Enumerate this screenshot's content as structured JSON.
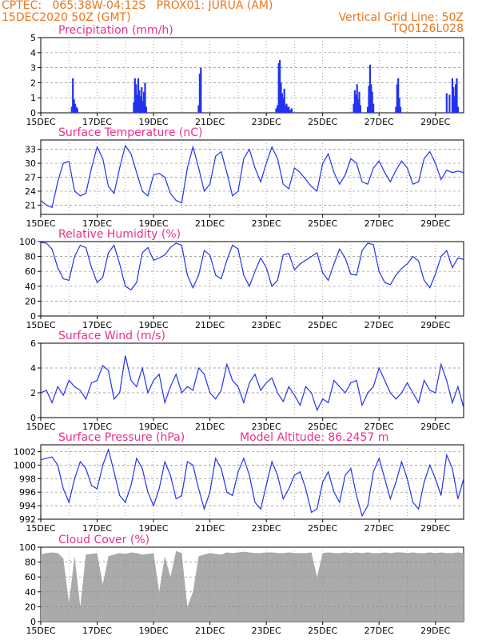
{
  "header": {
    "line1": "CPTEC:   065:38W-04:12S   PROX01: JURUA (AM)",
    "line2_left": "15DEC2020 50Z (GMT)",
    "line2_right": "Vertical Grid Line: 50Z",
    "line3_right": "TQ0126L028"
  },
  "colors": {
    "header": "#e8761e",
    "title": "#e8308c",
    "series": "#2233ee",
    "cloud": "#aaaaaa",
    "grid": "#888888"
  },
  "chart_data": [
    {
      "type": "bar",
      "title": "Precipitation (mm/h)",
      "xticks": [
        "15DEC",
        "17DEC",
        "19DEC",
        "21DEC",
        "23DEC",
        "25DEC",
        "27DEC",
        "29DEC"
      ],
      "yticks": [
        0,
        1,
        2,
        3,
        4,
        5
      ],
      "ylim": [
        0,
        5
      ],
      "x_range_days": [
        0,
        15
      ],
      "x": [
        1.1,
        1.14,
        1.18,
        1.22,
        1.26,
        1.3,
        3.3,
        3.34,
        3.38,
        3.42,
        3.46,
        3.5,
        3.54,
        3.58,
        3.62,
        3.66,
        3.7,
        3.74,
        5.6,
        5.64,
        5.68,
        8.35,
        8.4,
        8.44,
        8.48,
        8.52,
        8.56,
        8.6,
        8.64,
        8.68,
        8.72,
        8.76,
        8.8,
        8.85,
        8.9,
        11.1,
        11.14,
        11.18,
        11.22,
        11.26,
        11.3,
        11.34,
        11.6,
        11.64,
        11.68,
        11.72,
        11.76,
        11.8,
        12.6,
        12.64,
        12.68,
        12.72,
        12.76,
        14.4,
        14.5,
        14.6,
        14.64,
        14.68,
        14.72,
        14.76,
        14.8
      ],
      "values": [
        0.4,
        2.3,
        0.9,
        0.6,
        0.4,
        0.3,
        0.7,
        2.3,
        1.9,
        1.2,
        2.3,
        1.5,
        1.1,
        1.7,
        0.8,
        1.4,
        2.0,
        0.4,
        0.5,
        2.6,
        3.0,
        0.3,
        0.5,
        3.3,
        3.5,
        2.0,
        1.3,
        1.0,
        1.6,
        0.5,
        0.6,
        0.4,
        0.4,
        0.2,
        0.3,
        0.6,
        1.5,
        1.2,
        1.9,
        0.9,
        1.4,
        0.5,
        0.4,
        1.8,
        3.2,
        1.9,
        1.4,
        0.6,
        0.4,
        1.9,
        2.3,
        1.0,
        0.4,
        1.3,
        1.2,
        2.3,
        1.7,
        1.1,
        1.9,
        2.3,
        0.4
      ]
    },
    {
      "type": "line",
      "title": "Surface Temperature (nC)",
      "xticks": [
        "15DEC",
        "17DEC",
        "19DEC",
        "21DEC",
        "23DEC",
        "25DEC",
        "27DEC",
        "29DEC"
      ],
      "yticks": [
        21,
        24,
        27,
        30,
        33
      ],
      "ylim": [
        19,
        35
      ],
      "x_range_days": [
        0,
        15
      ],
      "x": [
        0.0,
        0.2,
        0.4,
        0.6,
        0.8,
        1.0,
        1.2,
        1.4,
        1.6,
        1.8,
        2.0,
        2.2,
        2.4,
        2.6,
        2.8,
        3.0,
        3.2,
        3.4,
        3.6,
        3.8,
        4.0,
        4.2,
        4.4,
        4.6,
        4.8,
        5.0,
        5.2,
        5.4,
        5.6,
        5.8,
        6.0,
        6.2,
        6.4,
        6.6,
        6.8,
        7.0,
        7.2,
        7.4,
        7.6,
        7.8,
        8.0,
        8.2,
        8.4,
        8.6,
        8.8,
        9.0,
        9.2,
        9.4,
        9.6,
        9.8,
        10.0,
        10.2,
        10.4,
        10.6,
        10.8,
        11.0,
        11.2,
        11.4,
        11.6,
        11.8,
        12.0,
        12.2,
        12.4,
        12.6,
        12.8,
        13.0,
        13.2,
        13.4,
        13.6,
        13.8,
        14.0,
        14.2,
        14.4,
        14.6,
        14.8,
        15.0
      ],
      "values": [
        22.0,
        21.0,
        20.5,
        26.0,
        30.0,
        30.4,
        24.0,
        23.0,
        23.5,
        29.0,
        33.5,
        31.0,
        25.0,
        23.5,
        29.0,
        33.8,
        32.0,
        28.0,
        24.0,
        23.0,
        27.5,
        27.8,
        27.0,
        23.5,
        22.0,
        21.5,
        29.0,
        33.5,
        29.0,
        24.0,
        25.5,
        31.5,
        32.5,
        28.0,
        23.0,
        24.0,
        31.0,
        33.0,
        29.0,
        26.0,
        30.0,
        33.5,
        31.0,
        25.5,
        24.5,
        29.0,
        28.0,
        26.5,
        25.0,
        24.0,
        30.0,
        32.0,
        28.0,
        25.5,
        27.5,
        31.0,
        30.0,
        26.0,
        25.5,
        29.0,
        30.5,
        28.0,
        26.0,
        28.5,
        30.5,
        29.0,
        25.5,
        26.0,
        31.0,
        32.5,
        30.0,
        26.5,
        28.5,
        28.0,
        28.3,
        28.0
      ]
    },
    {
      "type": "line",
      "title": "Relative Humidity (%)",
      "xticks": [
        "15DEC",
        "17DEC",
        "19DEC",
        "21DEC",
        "23DEC",
        "25DEC",
        "27DEC",
        "29DEC"
      ],
      "yticks": [
        0,
        20,
        40,
        60,
        80,
        100
      ],
      "ylim": [
        0,
        100
      ],
      "x_range_days": [
        0,
        15
      ],
      "x": [
        0.0,
        0.2,
        0.4,
        0.6,
        0.8,
        1.0,
        1.2,
        1.4,
        1.6,
        1.8,
        2.0,
        2.2,
        2.4,
        2.6,
        2.8,
        3.0,
        3.2,
        3.4,
        3.6,
        3.8,
        4.0,
        4.2,
        4.4,
        4.6,
        4.8,
        5.0,
        5.2,
        5.4,
        5.6,
        5.8,
        6.0,
        6.2,
        6.4,
        6.6,
        6.8,
        7.0,
        7.2,
        7.4,
        7.6,
        7.8,
        8.0,
        8.2,
        8.4,
        8.6,
        8.8,
        9.0,
        9.2,
        9.4,
        9.6,
        9.8,
        10.0,
        10.2,
        10.4,
        10.6,
        10.8,
        11.0,
        11.2,
        11.4,
        11.6,
        11.8,
        12.0,
        12.2,
        12.4,
        12.6,
        12.8,
        13.0,
        13.2,
        13.4,
        13.6,
        13.8,
        14.0,
        14.2,
        14.4,
        14.6,
        14.8,
        15.0
      ],
      "values": [
        99,
        98,
        90,
        65,
        50,
        48,
        80,
        95,
        92,
        65,
        45,
        52,
        85,
        95,
        70,
        40,
        35,
        45,
        85,
        92,
        75,
        78,
        82,
        92,
        98,
        95,
        55,
        38,
        55,
        88,
        82,
        55,
        50,
        75,
        95,
        90,
        55,
        40,
        60,
        78,
        65,
        40,
        48,
        82,
        84,
        62,
        70,
        75,
        80,
        85,
        58,
        48,
        70,
        90,
        78,
        56,
        55,
        88,
        98,
        96,
        60,
        45,
        42,
        55,
        64,
        70,
        80,
        74,
        48,
        38,
        56,
        80,
        88,
        65,
        78,
        76
      ]
    },
    {
      "type": "line",
      "title": "Surface Wind (m/s)",
      "xticks": [
        "15DEC",
        "17DEC",
        "19DEC",
        "21DEC",
        "23DEC",
        "25DEC",
        "27DEC",
        "29DEC"
      ],
      "yticks": [
        0,
        2,
        4,
        6
      ],
      "ylim": [
        0,
        6
      ],
      "x_range_days": [
        0,
        15
      ],
      "x": [
        0.0,
        0.2,
        0.4,
        0.6,
        0.8,
        1.0,
        1.2,
        1.4,
        1.6,
        1.8,
        2.0,
        2.2,
        2.4,
        2.6,
        2.8,
        3.0,
        3.2,
        3.4,
        3.6,
        3.8,
        4.0,
        4.2,
        4.4,
        4.6,
        4.8,
        5.0,
        5.2,
        5.4,
        5.6,
        5.8,
        6.0,
        6.2,
        6.4,
        6.6,
        6.8,
        7.0,
        7.2,
        7.4,
        7.6,
        7.8,
        8.0,
        8.2,
        8.4,
        8.6,
        8.8,
        9.0,
        9.2,
        9.4,
        9.6,
        9.8,
        10.0,
        10.2,
        10.4,
        10.6,
        10.8,
        11.0,
        11.2,
        11.4,
        11.6,
        11.8,
        12.0,
        12.2,
        12.4,
        12.6,
        12.8,
        13.0,
        13.2,
        13.4,
        13.6,
        13.8,
        14.0,
        14.2,
        14.4,
        14.6,
        14.8,
        15.0
      ],
      "values": [
        2.0,
        2.2,
        1.2,
        2.5,
        1.8,
        3.0,
        2.5,
        2.2,
        1.5,
        2.8,
        3.0,
        4.2,
        3.8,
        1.5,
        2.0,
        5.0,
        3.0,
        2.5,
        4.0,
        2.0,
        3.0,
        3.5,
        1.2,
        2.5,
        3.5,
        2.0,
        2.5,
        2.2,
        4.0,
        3.5,
        2.0,
        1.5,
        2.2,
        4.3,
        3.0,
        2.5,
        1.2,
        2.8,
        3.5,
        2.2,
        2.8,
        3.2,
        2.0,
        1.3,
        2.5,
        1.8,
        1.0,
        2.5,
        2.0,
        0.6,
        1.5,
        1.2,
        3.0,
        2.5,
        2.0,
        2.8,
        3.0,
        1.0,
        2.0,
        2.5,
        4.0,
        3.0,
        2.0,
        1.5,
        2.0,
        2.8,
        2.0,
        1.2,
        3.0,
        2.2,
        2.0,
        4.3,
        3.0,
        1.2,
        2.5,
        0.8
      ]
    },
    {
      "type": "line",
      "title": "Surface Pressure (hPa)",
      "annotation": "Model Altitude: 86.2457  m",
      "xticks": [
        "15DEC",
        "17DEC",
        "19DEC",
        "21DEC",
        "23DEC",
        "25DEC",
        "27DEC",
        "29DEC"
      ],
      "yticks": [
        992,
        994,
        996,
        998,
        1000,
        1002
      ],
      "ylim": [
        992,
        1003
      ],
      "x_range_days": [
        0,
        15
      ],
      "x": [
        0.0,
        0.2,
        0.4,
        0.6,
        0.8,
        1.0,
        1.2,
        1.4,
        1.6,
        1.8,
        2.0,
        2.2,
        2.4,
        2.6,
        2.8,
        3.0,
        3.2,
        3.4,
        3.6,
        3.8,
        4.0,
        4.2,
        4.4,
        4.6,
        4.8,
        5.0,
        5.2,
        5.4,
        5.6,
        5.8,
        6.0,
        6.2,
        6.4,
        6.6,
        6.8,
        7.0,
        7.2,
        7.4,
        7.6,
        7.8,
        8.0,
        8.2,
        8.4,
        8.6,
        8.8,
        9.0,
        9.2,
        9.4,
        9.6,
        9.8,
        10.0,
        10.2,
        10.4,
        10.6,
        10.8,
        11.0,
        11.2,
        11.4,
        11.6,
        11.8,
        12.0,
        12.2,
        12.4,
        12.6,
        12.8,
        13.0,
        13.2,
        13.4,
        13.6,
        13.8,
        14.0,
        14.2,
        14.4,
        14.6,
        14.8,
        15.0
      ],
      "values": [
        1000.8,
        1001.0,
        1001.2,
        1000.0,
        996.5,
        994.5,
        998.0,
        1000.5,
        999.5,
        997.0,
        996.5,
        1000.0,
        1002.3,
        999.0,
        995.5,
        994.5,
        997.0,
        1001.0,
        999.5,
        996.0,
        994.0,
        996.5,
        1000.5,
        998.5,
        995.0,
        995.5,
        1000.5,
        1000.0,
        996.5,
        993.5,
        996.0,
        1001.0,
        999.5,
        996.0,
        995.5,
        999.0,
        1001.0,
        998.5,
        994.5,
        993.5,
        997.0,
        1000.5,
        998.5,
        995.0,
        996.5,
        998.5,
        999.0,
        996.5,
        993.0,
        993.5,
        997.5,
        999.0,
        996.0,
        994.5,
        998.5,
        999.5,
        995.5,
        992.5,
        994.0,
        999.0,
        1001.0,
        998.0,
        995.0,
        997.5,
        1000.5,
        998.0,
        994.5,
        993.5,
        997.5,
        1000.0,
        998.0,
        995.5,
        1001.5,
        999.5,
        995.0,
        998.0
      ]
    },
    {
      "type": "area",
      "title": "Cloud Cover (%)",
      "xticks": [
        "15DEC",
        "17DEC",
        "19DEC",
        "21DEC",
        "23DEC",
        "25DEC",
        "27DEC",
        "29DEC"
      ],
      "yticks": [
        0,
        20,
        40,
        60,
        80,
        100
      ],
      "ylim": [
        0,
        100
      ],
      "x_range_days": [
        0,
        15
      ],
      "x": [
        0.0,
        0.2,
        0.4,
        0.6,
        0.8,
        1.0,
        1.2,
        1.4,
        1.6,
        1.8,
        2.0,
        2.2,
        2.4,
        2.6,
        2.8,
        3.0,
        3.2,
        3.4,
        3.6,
        3.8,
        4.0,
        4.2,
        4.4,
        4.6,
        4.8,
        5.0,
        5.2,
        5.4,
        5.6,
        5.8,
        6.0,
        6.2,
        6.4,
        6.6,
        6.8,
        7.0,
        7.2,
        7.4,
        7.6,
        7.8,
        8.0,
        8.2,
        8.4,
        8.6,
        8.8,
        9.0,
        9.2,
        9.4,
        9.6,
        9.8,
        10.0,
        10.2,
        10.4,
        10.6,
        10.8,
        11.0,
        11.2,
        11.4,
        11.6,
        11.8,
        12.0,
        12.2,
        12.4,
        12.6,
        12.8,
        13.0,
        13.2,
        13.4,
        13.6,
        13.8,
        14.0,
        14.2,
        14.4,
        14.6,
        14.8,
        15.0
      ],
      "values": [
        90,
        92,
        93,
        92,
        85,
        25,
        88,
        20,
        90,
        91,
        92,
        50,
        88,
        90,
        92,
        91,
        93,
        92,
        90,
        91,
        92,
        40,
        88,
        60,
        95,
        92,
        20,
        40,
        88,
        90,
        92,
        91,
        90,
        93,
        92,
        93,
        94,
        93,
        92,
        92,
        93,
        93,
        92,
        92,
        93,
        92,
        92,
        92,
        93,
        60,
        92,
        93,
        92,
        92,
        93,
        92,
        93,
        92,
        93,
        92,
        92,
        93,
        92,
        93,
        93,
        92,
        93,
        92,
        92,
        93,
        92,
        93,
        92,
        92,
        93,
        92
      ]
    }
  ]
}
